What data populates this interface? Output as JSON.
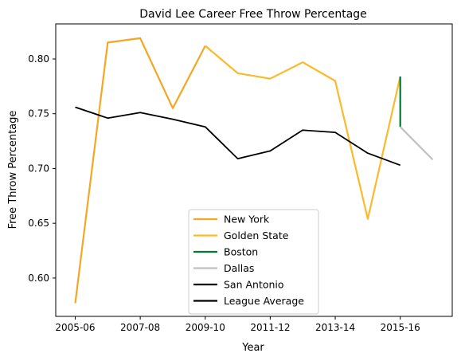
{
  "chart_data": {
    "type": "line",
    "title": "David Lee  Career Free Throw Percentage",
    "xlabel": "Year",
    "ylabel": "Free Throw Percentage",
    "xlim": [
      -0.6,
      11.6
    ],
    "ylim": [
      0.565,
      0.832
    ],
    "x_ticks": [
      {
        "x": 0,
        "label": "2005-06"
      },
      {
        "x": 2,
        "label": "2007-08"
      },
      {
        "x": 4,
        "label": "2009-10"
      },
      {
        "x": 6,
        "label": "2011-12"
      },
      {
        "x": 8,
        "label": "2013-14"
      },
      {
        "x": 10,
        "label": "2015-16"
      }
    ],
    "y_ticks": [
      {
        "y": 0.6,
        "label": "0.60"
      },
      {
        "y": 0.65,
        "label": "0.65"
      },
      {
        "y": 0.7,
        "label": "0.70"
      },
      {
        "y": 0.75,
        "label": "0.75"
      },
      {
        "y": 0.8,
        "label": "0.80"
      }
    ],
    "legend_position": "bottom-center",
    "series": [
      {
        "name": "New York",
        "color": "#f5a623",
        "x": [
          0,
          1,
          2,
          3,
          4
        ],
        "y": [
          0.577,
          0.815,
          0.819,
          0.755,
          0.812
        ]
      },
      {
        "name": "Golden State",
        "color": "#fdb92c",
        "x": [
          4,
          5,
          6,
          7,
          8,
          9,
          10
        ],
        "y": [
          0.812,
          0.787,
          0.782,
          0.797,
          0.78,
          0.654,
          0.784
        ]
      },
      {
        "name": "Boston",
        "color": "#007a33",
        "x": [
          10,
          10
        ],
        "y": [
          0.784,
          0.738
        ]
      },
      {
        "name": "Dallas",
        "color": "#c0c0c0",
        "x": [
          10,
          11
        ],
        "y": [
          0.738,
          0.708
        ]
      },
      {
        "name": "San Antonio",
        "color": "#000000",
        "x": [],
        "y": []
      },
      {
        "name": "League Average",
        "color": "#000000",
        "x": [
          0,
          1,
          2,
          3,
          4,
          5,
          6,
          7,
          8,
          9,
          10
        ],
        "y": [
          0.756,
          0.746,
          0.751,
          0.745,
          0.738,
          0.709,
          0.716,
          0.735,
          0.733,
          0.714,
          0.703
        ]
      }
    ]
  }
}
